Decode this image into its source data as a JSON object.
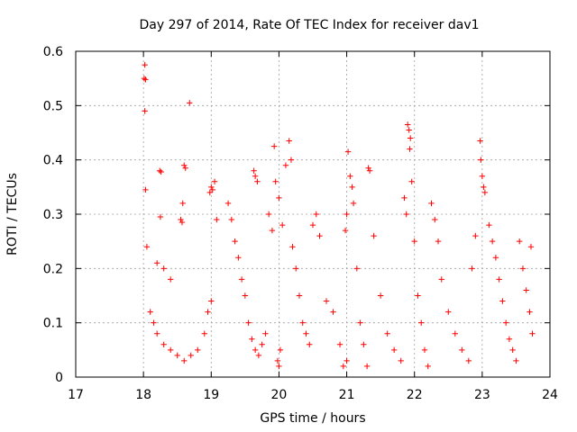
{
  "chart_data": {
    "type": "scatter",
    "title": "Day 297 of 2014, Rate Of TEC Index for receiver dav1",
    "xlabel": "GPS time / hours",
    "ylabel": "ROTI / TECUs",
    "xlim": [
      17,
      24
    ],
    "ylim": [
      0,
      0.6
    ],
    "xticks": [
      "17",
      "18",
      "19",
      "20",
      "21",
      "22",
      "23",
      "24"
    ],
    "yticks": [
      "0",
      "0.1",
      "0.2",
      "0.3",
      "0.4",
      "0.5",
      "0.6"
    ],
    "grid": true,
    "marker": "+",
    "color": "#ff0000",
    "series": [
      {
        "name": "dav1",
        "points": [
          [
            18.02,
            0.575
          ],
          [
            18.01,
            0.55
          ],
          [
            18.03,
            0.548
          ],
          [
            18.02,
            0.49
          ],
          [
            18.03,
            0.345
          ],
          [
            18.05,
            0.24
          ],
          [
            18.6,
            0.39
          ],
          [
            18.62,
            0.385
          ],
          [
            18.55,
            0.29
          ],
          [
            18.57,
            0.285
          ],
          [
            18.68,
            0.505
          ],
          [
            18.58,
            0.32
          ],
          [
            18.24,
            0.38
          ],
          [
            18.26,
            0.378
          ],
          [
            18.25,
            0.295
          ],
          [
            18.2,
            0.21
          ],
          [
            18.3,
            0.2
          ],
          [
            18.4,
            0.18
          ],
          [
            18.1,
            0.12
          ],
          [
            18.15,
            0.1
          ],
          [
            18.2,
            0.08
          ],
          [
            18.3,
            0.06
          ],
          [
            18.4,
            0.05
          ],
          [
            18.5,
            0.04
          ],
          [
            18.6,
            0.03
          ],
          [
            18.7,
            0.04
          ],
          [
            18.8,
            0.05
          ],
          [
            18.9,
            0.08
          ],
          [
            18.95,
            0.12
          ],
          [
            19.0,
            0.14
          ],
          [
            18.98,
            0.34
          ],
          [
            19.0,
            0.35
          ],
          [
            19.02,
            0.345
          ],
          [
            19.05,
            0.36
          ],
          [
            19.08,
            0.29
          ],
          [
            19.25,
            0.32
          ],
          [
            19.3,
            0.29
          ],
          [
            19.35,
            0.25
          ],
          [
            19.4,
            0.22
          ],
          [
            19.45,
            0.18
          ],
          [
            19.5,
            0.15
          ],
          [
            19.55,
            0.1
          ],
          [
            19.6,
            0.07
          ],
          [
            19.65,
            0.05
          ],
          [
            19.7,
            0.04
          ],
          [
            19.75,
            0.06
          ],
          [
            19.8,
            0.08
          ],
          [
            19.63,
            0.38
          ],
          [
            19.65,
            0.37
          ],
          [
            19.68,
            0.36
          ],
          [
            19.85,
            0.3
          ],
          [
            19.9,
            0.27
          ],
          [
            19.93,
            0.425
          ],
          [
            19.95,
            0.36
          ],
          [
            20.0,
            0.33
          ],
          [
            20.05,
            0.28
          ],
          [
            20.1,
            0.39
          ],
          [
            20.15,
            0.435
          ],
          [
            20.18,
            0.4
          ],
          [
            20.2,
            0.24
          ],
          [
            20.25,
            0.2
          ],
          [
            20.3,
            0.15
          ],
          [
            20.0,
            0.02
          ],
          [
            19.98,
            0.03
          ],
          [
            20.02,
            0.05
          ],
          [
            20.35,
            0.1
          ],
          [
            20.4,
            0.08
          ],
          [
            20.45,
            0.06
          ],
          [
            20.5,
            0.28
          ],
          [
            20.55,
            0.3
          ],
          [
            20.6,
            0.26
          ],
          [
            20.7,
            0.14
          ],
          [
            20.8,
            0.12
          ],
          [
            20.9,
            0.06
          ],
          [
            20.95,
            0.02
          ],
          [
            21.0,
            0.03
          ],
          [
            21.02,
            0.415
          ],
          [
            21.05,
            0.37
          ],
          [
            21.08,
            0.35
          ],
          [
            21.1,
            0.32
          ],
          [
            21.0,
            0.3
          ],
          [
            20.98,
            0.27
          ],
          [
            21.15,
            0.2
          ],
          [
            21.2,
            0.1
          ],
          [
            21.25,
            0.06
          ],
          [
            21.3,
            0.02
          ],
          [
            21.32,
            0.385
          ],
          [
            21.34,
            0.38
          ],
          [
            21.4,
            0.26
          ],
          [
            21.5,
            0.15
          ],
          [
            21.6,
            0.08
          ],
          [
            21.7,
            0.05
          ],
          [
            21.8,
            0.03
          ],
          [
            21.85,
            0.33
          ],
          [
            21.88,
            0.3
          ],
          [
            21.9,
            0.465
          ],
          [
            21.92,
            0.455
          ],
          [
            21.94,
            0.44
          ],
          [
            21.93,
            0.42
          ],
          [
            21.96,
            0.36
          ],
          [
            22.0,
            0.25
          ],
          [
            22.05,
            0.15
          ],
          [
            22.1,
            0.1
          ],
          [
            22.15,
            0.05
          ],
          [
            22.2,
            0.02
          ],
          [
            22.25,
            0.32
          ],
          [
            22.3,
            0.29
          ],
          [
            22.35,
            0.25
          ],
          [
            22.4,
            0.18
          ],
          [
            22.5,
            0.12
          ],
          [
            22.6,
            0.08
          ],
          [
            22.7,
            0.05
          ],
          [
            22.8,
            0.03
          ],
          [
            22.85,
            0.2
          ],
          [
            22.9,
            0.26
          ],
          [
            22.97,
            0.435
          ],
          [
            22.98,
            0.4
          ],
          [
            23.0,
            0.37
          ],
          [
            23.02,
            0.35
          ],
          [
            23.04,
            0.34
          ],
          [
            23.1,
            0.28
          ],
          [
            23.15,
            0.25
          ],
          [
            23.2,
            0.22
          ],
          [
            23.25,
            0.18
          ],
          [
            23.3,
            0.14
          ],
          [
            23.35,
            0.1
          ],
          [
            23.4,
            0.07
          ],
          [
            23.45,
            0.05
          ],
          [
            23.5,
            0.03
          ],
          [
            23.55,
            0.25
          ],
          [
            23.6,
            0.2
          ],
          [
            23.65,
            0.16
          ],
          [
            23.7,
            0.12
          ],
          [
            23.72,
            0.24
          ],
          [
            23.74,
            0.08
          ]
        ]
      }
    ]
  }
}
